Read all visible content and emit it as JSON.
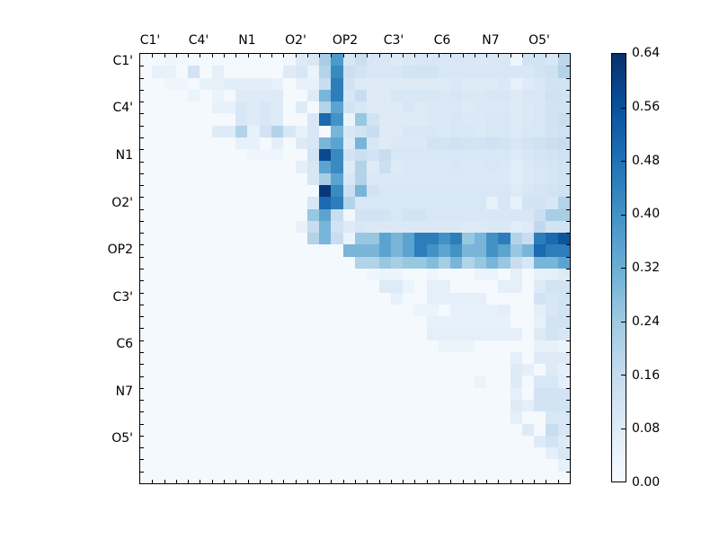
{
  "figure": {
    "background_color": "#ffffff",
    "axis_color": "#000000",
    "text_color": "#000000"
  },
  "chart_data": {
    "type": "heatmap",
    "description": "Upper-triangular 36x36 atom-pair matrix heatmap with Blues colormap and vertical colorbar",
    "x_tick_labels": [
      "C1'",
      "C4'",
      "N1",
      "O2'",
      "OP2",
      "C3'",
      "C6",
      "N7",
      "O5'"
    ],
    "y_tick_labels": [
      "C1'",
      "C4'",
      "N1",
      "O2'",
      "OP2",
      "C3'",
      "C6",
      "N7",
      "O5'"
    ],
    "matrix_size": 36,
    "vmin": 0.0,
    "vmax": 0.64,
    "colorbar_tick_labels": [
      "0.00",
      "0.08",
      "0.16",
      "0.24",
      "0.32",
      "0.40",
      "0.48",
      "0.56",
      "0.64"
    ],
    "colormap": "Blues",
    "colormap_colors": [
      "#f7fbff",
      "#deebf7",
      "#c6dbef",
      "#9ecae1",
      "#6baed6",
      "#4292c6",
      "#2171b5",
      "#08519c",
      "#08306b"
    ],
    "legend_position": "right",
    "grid": false,
    "values": [
      [
        0.01,
        0.01,
        0.03,
        0.02,
        0.01,
        0.01,
        0.01,
        0.01,
        0.01,
        0.01,
        0.01,
        0.01,
        0.02,
        0.08,
        0.1,
        0.22,
        0.38,
        0.1,
        0.14,
        0.1,
        0.1,
        0.08,
        0.09,
        0.1,
        0.1,
        0.1,
        0.1,
        0.1,
        0.09,
        0.1,
        0.1,
        0.03,
        0.12,
        0.12,
        0.1,
        0.18
      ],
      [
        0.01,
        0.05,
        0.05,
        0.01,
        0.12,
        0.01,
        0.06,
        0.01,
        0.01,
        0.01,
        0.01,
        0.01,
        0.08,
        0.1,
        0.04,
        0.2,
        0.42,
        0.14,
        0.12,
        0.1,
        0.1,
        0.1,
        0.12,
        0.12,
        0.12,
        0.1,
        0.1,
        0.1,
        0.1,
        0.1,
        0.1,
        0.1,
        0.1,
        0.12,
        0.13,
        0.2
      ],
      [
        0.01,
        0.01,
        0.03,
        0.03,
        0.01,
        0.05,
        0.05,
        0.07,
        0.07,
        0.07,
        0.07,
        0.05,
        0.01,
        0.05,
        0.05,
        0.15,
        0.45,
        0.12,
        0.08,
        0.08,
        0.08,
        0.08,
        0.08,
        0.08,
        0.08,
        0.08,
        0.09,
        0.08,
        0.08,
        0.08,
        0.09,
        0.05,
        0.08,
        0.1,
        0.12,
        0.12
      ],
      [
        0.01,
        0.01,
        0.01,
        0.01,
        0.04,
        0.01,
        0.04,
        0.01,
        0.08,
        0.08,
        0.08,
        0.08,
        0.01,
        0.01,
        0.08,
        0.3,
        0.45,
        0.1,
        0.15,
        0.08,
        0.08,
        0.1,
        0.1,
        0.1,
        0.1,
        0.09,
        0.1,
        0.09,
        0.09,
        0.1,
        0.1,
        0.08,
        0.1,
        0.1,
        0.13,
        0.12
      ],
      [
        0.01,
        0.01,
        0.01,
        0.01,
        0.01,
        0.01,
        0.05,
        0.05,
        0.1,
        0.08,
        0.1,
        0.08,
        0.01,
        0.08,
        0.01,
        0.2,
        0.35,
        0.12,
        0.1,
        0.08,
        0.08,
        0.08,
        0.1,
        0.08,
        0.09,
        0.09,
        0.09,
        0.08,
        0.09,
        0.09,
        0.09,
        0.08,
        0.09,
        0.1,
        0.12,
        0.12
      ],
      [
        0.01,
        0.01,
        0.01,
        0.01,
        0.01,
        0.01,
        0.01,
        0.01,
        0.1,
        0.08,
        0.1,
        0.08,
        0.01,
        0.01,
        0.1,
        0.5,
        0.4,
        0.04,
        0.25,
        0.12,
        0.08,
        0.08,
        0.08,
        0.08,
        0.09,
        0.09,
        0.1,
        0.09,
        0.09,
        0.1,
        0.1,
        0.08,
        0.09,
        0.1,
        0.12,
        0.14
      ],
      [
        0.01,
        0.01,
        0.01,
        0.01,
        0.01,
        0.01,
        0.08,
        0.08,
        0.2,
        0.05,
        0.12,
        0.2,
        0.1,
        0.05,
        0.1,
        0.01,
        0.3,
        0.1,
        0.12,
        0.15,
        0.08,
        0.08,
        0.1,
        0.1,
        0.1,
        0.09,
        0.1,
        0.1,
        0.09,
        0.1,
        0.1,
        0.08,
        0.1,
        0.1,
        0.12,
        0.13
      ],
      [
        0.01,
        0.01,
        0.01,
        0.01,
        0.01,
        0.01,
        0.01,
        0.01,
        0.05,
        0.05,
        0.01,
        0.06,
        0.01,
        0.08,
        0.1,
        0.3,
        0.35,
        0.08,
        0.3,
        0.1,
        0.08,
        0.09,
        0.09,
        0.09,
        0.12,
        0.12,
        0.13,
        0.12,
        0.12,
        0.13,
        0.12,
        0.1,
        0.12,
        0.13,
        0.14,
        0.15
      ],
      [
        0.01,
        0.01,
        0.01,
        0.01,
        0.01,
        0.01,
        0.01,
        0.01,
        0.01,
        0.03,
        0.03,
        0.03,
        0.01,
        0.01,
        0.12,
        0.58,
        0.42,
        0.12,
        0.14,
        0.12,
        0.15,
        0.1,
        0.1,
        0.1,
        0.1,
        0.1,
        0.1,
        0.1,
        0.1,
        0.1,
        0.1,
        0.08,
        0.1,
        0.11,
        0.12,
        0.13
      ],
      [
        0.01,
        0.01,
        0.01,
        0.01,
        0.01,
        0.01,
        0.01,
        0.01,
        0.01,
        0.01,
        0.01,
        0.01,
        0.01,
        0.06,
        0.1,
        0.35,
        0.42,
        0.08,
        0.2,
        0.08,
        0.14,
        0.08,
        0.09,
        0.09,
        0.09,
        0.09,
        0.1,
        0.09,
        0.09,
        0.1,
        0.09,
        0.07,
        0.09,
        0.1,
        0.11,
        0.12
      ],
      [
        0.01,
        0.01,
        0.01,
        0.01,
        0.01,
        0.01,
        0.01,
        0.01,
        0.01,
        0.01,
        0.01,
        0.01,
        0.01,
        0.01,
        0.1,
        0.22,
        0.35,
        0.1,
        0.2,
        0.09,
        0.09,
        0.09,
        0.09,
        0.09,
        0.09,
        0.09,
        0.09,
        0.09,
        0.09,
        0.09,
        0.09,
        0.07,
        0.09,
        0.1,
        0.11,
        0.12
      ],
      [
        0.01,
        0.01,
        0.01,
        0.01,
        0.01,
        0.01,
        0.01,
        0.01,
        0.01,
        0.01,
        0.01,
        0.01,
        0.01,
        0.01,
        0.01,
        0.62,
        0.42,
        0.14,
        0.3,
        0.12,
        0.1,
        0.1,
        0.1,
        0.1,
        0.1,
        0.1,
        0.1,
        0.1,
        0.1,
        0.1,
        0.1,
        0.08,
        0.1,
        0.11,
        0.12,
        0.13
      ],
      [
        0.01,
        0.01,
        0.01,
        0.01,
        0.01,
        0.01,
        0.01,
        0.01,
        0.01,
        0.01,
        0.01,
        0.01,
        0.01,
        0.01,
        0.1,
        0.5,
        0.45,
        0.2,
        0.1,
        0.1,
        0.1,
        0.1,
        0.1,
        0.1,
        0.1,
        0.1,
        0.1,
        0.1,
        0.1,
        0.05,
        0.1,
        0.05,
        0.12,
        0.12,
        0.1,
        0.2
      ],
      [
        0.01,
        0.01,
        0.01,
        0.01,
        0.01,
        0.01,
        0.01,
        0.01,
        0.01,
        0.01,
        0.01,
        0.01,
        0.01,
        0.01,
        0.25,
        0.35,
        0.15,
        0.02,
        0.12,
        0.12,
        0.12,
        0.1,
        0.12,
        0.12,
        0.1,
        0.1,
        0.1,
        0.1,
        0.1,
        0.1,
        0.1,
        0.1,
        0.1,
        0.14,
        0.22,
        0.22
      ],
      [
        0.01,
        0.01,
        0.01,
        0.01,
        0.01,
        0.01,
        0.01,
        0.01,
        0.01,
        0.01,
        0.01,
        0.01,
        0.01,
        0.05,
        0.15,
        0.3,
        0.12,
        0.08,
        0.1,
        0.09,
        0.09,
        0.09,
        0.09,
        0.09,
        0.09,
        0.09,
        0.09,
        0.08,
        0.08,
        0.09,
        0.09,
        0.07,
        0.08,
        0.17,
        0.12,
        0.12
      ],
      [
        0.01,
        0.01,
        0.01,
        0.01,
        0.01,
        0.01,
        0.01,
        0.01,
        0.01,
        0.01,
        0.01,
        0.01,
        0.01,
        0.01,
        0.2,
        0.3,
        0.15,
        0.04,
        0.25,
        0.25,
        0.35,
        0.3,
        0.35,
        0.45,
        0.45,
        0.4,
        0.45,
        0.25,
        0.3,
        0.4,
        0.45,
        0.2,
        0.15,
        0.45,
        0.5,
        0.55
      ],
      [
        0.01,
        0.01,
        0.01,
        0.01,
        0.01,
        0.01,
        0.01,
        0.01,
        0.01,
        0.01,
        0.01,
        0.01,
        0.01,
        0.01,
        0.01,
        0.01,
        0.01,
        0.3,
        0.3,
        0.3,
        0.35,
        0.3,
        0.35,
        0.45,
        0.4,
        0.35,
        0.4,
        0.3,
        0.3,
        0.4,
        0.35,
        0.25,
        0.3,
        0.5,
        0.45,
        0.45
      ],
      [
        0.01,
        0.01,
        0.01,
        0.01,
        0.01,
        0.01,
        0.01,
        0.01,
        0.01,
        0.01,
        0.01,
        0.01,
        0.01,
        0.01,
        0.01,
        0.01,
        0.01,
        0.01,
        0.2,
        0.2,
        0.25,
        0.22,
        0.25,
        0.25,
        0.28,
        0.22,
        0.3,
        0.2,
        0.25,
        0.3,
        0.25,
        0.15,
        0.1,
        0.3,
        0.3,
        0.35
      ],
      [
        0.01,
        0.01,
        0.01,
        0.01,
        0.01,
        0.01,
        0.01,
        0.01,
        0.01,
        0.01,
        0.01,
        0.01,
        0.01,
        0.01,
        0.01,
        0.01,
        0.01,
        0.01,
        0.01,
        0.03,
        0.04,
        0.04,
        0.01,
        0.01,
        0.03,
        0.01,
        0.01,
        0.01,
        0.04,
        0.04,
        0.01,
        0.06,
        0.01,
        0.05,
        0.06,
        0.08
      ],
      [
        0.01,
        0.01,
        0.01,
        0.01,
        0.01,
        0.01,
        0.01,
        0.01,
        0.01,
        0.01,
        0.01,
        0.01,
        0.01,
        0.01,
        0.01,
        0.01,
        0.01,
        0.01,
        0.01,
        0.01,
        0.08,
        0.08,
        0.04,
        0.01,
        0.06,
        0.06,
        0.01,
        0.01,
        0.01,
        0.01,
        0.06,
        0.06,
        0.01,
        0.08,
        0.12,
        0.12
      ],
      [
        0.01,
        0.01,
        0.01,
        0.01,
        0.01,
        0.01,
        0.01,
        0.01,
        0.01,
        0.01,
        0.01,
        0.01,
        0.01,
        0.01,
        0.01,
        0.01,
        0.01,
        0.01,
        0.01,
        0.01,
        0.01,
        0.05,
        0.01,
        0.01,
        0.06,
        0.06,
        0.06,
        0.06,
        0.06,
        0.01,
        0.01,
        0.01,
        0.01,
        0.12,
        0.1,
        0.12
      ],
      [
        0.01,
        0.01,
        0.01,
        0.01,
        0.01,
        0.01,
        0.01,
        0.01,
        0.01,
        0.01,
        0.01,
        0.01,
        0.01,
        0.01,
        0.01,
        0.01,
        0.01,
        0.01,
        0.01,
        0.01,
        0.01,
        0.01,
        0.01,
        0.04,
        0.04,
        0.01,
        0.05,
        0.05,
        0.05,
        0.05,
        0.06,
        0.01,
        0.01,
        0.06,
        0.1,
        0.12
      ],
      [
        0.01,
        0.01,
        0.01,
        0.01,
        0.01,
        0.01,
        0.01,
        0.01,
        0.01,
        0.01,
        0.01,
        0.01,
        0.01,
        0.01,
        0.01,
        0.01,
        0.01,
        0.01,
        0.01,
        0.01,
        0.01,
        0.01,
        0.01,
        0.01,
        0.05,
        0.05,
        0.05,
        0.05,
        0.05,
        0.05,
        0.05,
        0.01,
        0.01,
        0.05,
        0.12,
        0.12
      ],
      [
        0.01,
        0.01,
        0.01,
        0.01,
        0.01,
        0.01,
        0.01,
        0.01,
        0.01,
        0.01,
        0.01,
        0.01,
        0.01,
        0.01,
        0.01,
        0.01,
        0.01,
        0.01,
        0.01,
        0.01,
        0.01,
        0.01,
        0.01,
        0.01,
        0.06,
        0.06,
        0.06,
        0.06,
        0.06,
        0.06,
        0.06,
        0.06,
        0.01,
        0.08,
        0.12,
        0.1
      ],
      [
        0.01,
        0.01,
        0.01,
        0.01,
        0.01,
        0.01,
        0.01,
        0.01,
        0.01,
        0.01,
        0.01,
        0.01,
        0.01,
        0.01,
        0.01,
        0.01,
        0.01,
        0.01,
        0.01,
        0.01,
        0.01,
        0.01,
        0.01,
        0.01,
        0.01,
        0.04,
        0.04,
        0.04,
        0.01,
        0.01,
        0.01,
        0.01,
        0.01,
        0.05,
        0.05,
        0.04
      ],
      [
        0.01,
        0.01,
        0.01,
        0.01,
        0.01,
        0.01,
        0.01,
        0.01,
        0.01,
        0.01,
        0.01,
        0.01,
        0.01,
        0.01,
        0.01,
        0.01,
        0.01,
        0.01,
        0.01,
        0.01,
        0.01,
        0.01,
        0.01,
        0.01,
        0.01,
        0.01,
        0.01,
        0.01,
        0.01,
        0.01,
        0.01,
        0.06,
        0.01,
        0.08,
        0.08,
        0.08
      ],
      [
        0.01,
        0.01,
        0.01,
        0.01,
        0.01,
        0.01,
        0.01,
        0.01,
        0.01,
        0.01,
        0.01,
        0.01,
        0.01,
        0.01,
        0.01,
        0.01,
        0.01,
        0.01,
        0.01,
        0.01,
        0.01,
        0.01,
        0.01,
        0.01,
        0.01,
        0.01,
        0.01,
        0.01,
        0.01,
        0.01,
        0.01,
        0.08,
        0.06,
        0.01,
        0.08,
        0.06
      ],
      [
        0.01,
        0.01,
        0.01,
        0.01,
        0.01,
        0.01,
        0.01,
        0.01,
        0.01,
        0.01,
        0.01,
        0.01,
        0.01,
        0.01,
        0.01,
        0.01,
        0.01,
        0.01,
        0.01,
        0.01,
        0.01,
        0.01,
        0.01,
        0.01,
        0.01,
        0.01,
        0.01,
        0.01,
        0.04,
        0.01,
        0.01,
        0.08,
        0.01,
        0.1,
        0.1,
        0.06
      ],
      [
        0.01,
        0.01,
        0.01,
        0.01,
        0.01,
        0.01,
        0.01,
        0.01,
        0.01,
        0.01,
        0.01,
        0.01,
        0.01,
        0.01,
        0.01,
        0.01,
        0.01,
        0.01,
        0.01,
        0.01,
        0.01,
        0.01,
        0.01,
        0.01,
        0.01,
        0.01,
        0.01,
        0.01,
        0.01,
        0.01,
        0.01,
        0.06,
        0.01,
        0.12,
        0.12,
        0.12
      ],
      [
        0.01,
        0.01,
        0.01,
        0.01,
        0.01,
        0.01,
        0.01,
        0.01,
        0.01,
        0.01,
        0.01,
        0.01,
        0.01,
        0.01,
        0.01,
        0.01,
        0.01,
        0.01,
        0.01,
        0.01,
        0.01,
        0.01,
        0.01,
        0.01,
        0.01,
        0.01,
        0.01,
        0.01,
        0.01,
        0.01,
        0.01,
        0.08,
        0.06,
        0.12,
        0.12,
        0.12
      ],
      [
        0.01,
        0.01,
        0.01,
        0.01,
        0.01,
        0.01,
        0.01,
        0.01,
        0.01,
        0.01,
        0.01,
        0.01,
        0.01,
        0.01,
        0.01,
        0.01,
        0.01,
        0.01,
        0.01,
        0.01,
        0.01,
        0.01,
        0.01,
        0.01,
        0.01,
        0.01,
        0.01,
        0.01,
        0.01,
        0.01,
        0.01,
        0.06,
        0.01,
        0.01,
        0.1,
        0.1
      ],
      [
        0.01,
        0.01,
        0.01,
        0.01,
        0.01,
        0.01,
        0.01,
        0.01,
        0.01,
        0.01,
        0.01,
        0.01,
        0.01,
        0.01,
        0.01,
        0.01,
        0.01,
        0.01,
        0.01,
        0.01,
        0.01,
        0.01,
        0.01,
        0.01,
        0.01,
        0.01,
        0.01,
        0.01,
        0.01,
        0.01,
        0.01,
        0.01,
        0.08,
        0.01,
        0.15,
        0.1
      ],
      [
        0.01,
        0.01,
        0.01,
        0.01,
        0.01,
        0.01,
        0.01,
        0.01,
        0.01,
        0.01,
        0.01,
        0.01,
        0.01,
        0.01,
        0.01,
        0.01,
        0.01,
        0.01,
        0.01,
        0.01,
        0.01,
        0.01,
        0.01,
        0.01,
        0.01,
        0.01,
        0.01,
        0.01,
        0.01,
        0.01,
        0.01,
        0.01,
        0.01,
        0.08,
        0.12,
        0.08
      ],
      [
        0.01,
        0.01,
        0.01,
        0.01,
        0.01,
        0.01,
        0.01,
        0.01,
        0.01,
        0.01,
        0.01,
        0.01,
        0.01,
        0.01,
        0.01,
        0.01,
        0.01,
        0.01,
        0.01,
        0.01,
        0.01,
        0.01,
        0.01,
        0.01,
        0.01,
        0.01,
        0.01,
        0.01,
        0.01,
        0.01,
        0.01,
        0.01,
        0.01,
        0.01,
        0.06,
        0.1
      ],
      [
        0.01,
        0.01,
        0.01,
        0.01,
        0.01,
        0.01,
        0.01,
        0.01,
        0.01,
        0.01,
        0.01,
        0.01,
        0.01,
        0.01,
        0.01,
        0.01,
        0.01,
        0.01,
        0.01,
        0.01,
        0.01,
        0.01,
        0.01,
        0.01,
        0.01,
        0.01,
        0.01,
        0.01,
        0.01,
        0.01,
        0.01,
        0.01,
        0.01,
        0.01,
        0.01,
        0.05
      ],
      [
        0.01,
        0.01,
        0.01,
        0.01,
        0.01,
        0.01,
        0.01,
        0.01,
        0.01,
        0.01,
        0.01,
        0.01,
        0.01,
        0.01,
        0.01,
        0.01,
        0.01,
        0.01,
        0.01,
        0.01,
        0.01,
        0.01,
        0.01,
        0.01,
        0.01,
        0.01,
        0.01,
        0.01,
        0.01,
        0.01,
        0.01,
        0.01,
        0.01,
        0.01,
        0.01,
        0.01
      ]
    ]
  }
}
